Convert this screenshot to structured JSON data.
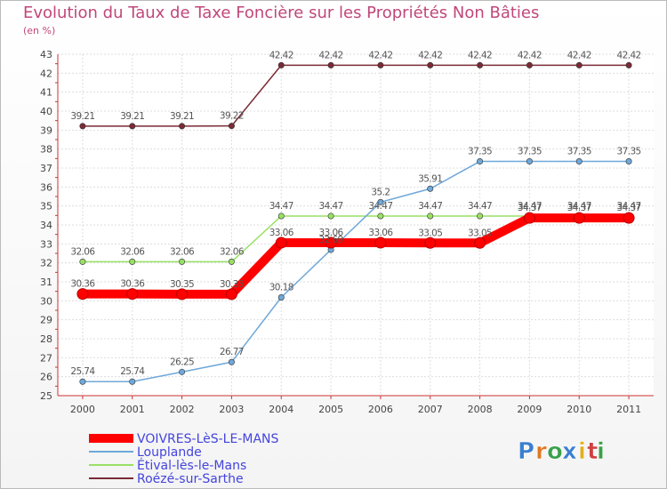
{
  "chart_data": {
    "type": "line",
    "title": "Evolution du Taux de Taxe Foncière sur les Propriétés Non Bâties",
    "subtitle": "(en %)",
    "xlabel": "",
    "ylabel": "",
    "ylim": [
      25,
      43
    ],
    "yticks": [
      "25",
      "26",
      "27",
      "28",
      "29",
      "30",
      "31",
      "32",
      "33",
      "34",
      "35",
      "36",
      "37",
      "38",
      "39",
      "40",
      "41",
      "42",
      "43"
    ],
    "categories": [
      "2000",
      "2001",
      "2002",
      "2003",
      "2004",
      "2005",
      "2006",
      "2007",
      "2008",
      "2009",
      "2010",
      "2011"
    ],
    "grid": true,
    "legend_position": "bottom-left",
    "series": [
      {
        "name": "Roézé-sur-Sarthe",
        "color": "#7a2b35",
        "values": [
          39.21,
          39.21,
          39.21,
          39.22,
          42.42,
          42.42,
          42.42,
          42.42,
          42.42,
          42.42,
          42.42,
          42.42
        ],
        "labels": [
          "39.21",
          "39.21",
          "39.21",
          "39.22",
          "42.42",
          "42.42",
          "42.42",
          "42.42",
          "42.42",
          "42.42",
          "42.42",
          "42.42"
        ]
      },
      {
        "name": "Étival-lès-le-Mans",
        "color": "#99e066",
        "values": [
          32.06,
          32.06,
          32.06,
          32.06,
          34.47,
          34.47,
          34.47,
          34.47,
          34.47,
          34.47,
          34.47,
          34.47
        ],
        "labels": [
          "32.06",
          "32.06",
          "32.06",
          "32.06",
          "34.47",
          "34.47",
          "34.47",
          "34.47",
          "34.47",
          "34.47",
          "34.47",
          "34.47"
        ]
      },
      {
        "name": "Louplande",
        "color": "#6fa8d9",
        "values": [
          25.74,
          25.74,
          26.25,
          26.77,
          30.18,
          32.69,
          35.2,
          35.91,
          37.35,
          37.35,
          37.35,
          37.35
        ],
        "labels": [
          "25.74",
          "25.74",
          "26.25",
          "26.77",
          "30.18",
          "32.69",
          "35.2",
          "35.91",
          "37.35",
          "37.35",
          "37.35",
          "37.35"
        ]
      },
      {
        "name": "VOIVRES-LèS-LE-MANS",
        "color": "#ff0000",
        "values": [
          30.36,
          30.36,
          30.35,
          30.35,
          33.06,
          33.06,
          33.06,
          33.05,
          33.05,
          34.37,
          34.37,
          34.37
        ],
        "labels": [
          "30.36",
          "30.36",
          "30.35",
          "30.35",
          "33.06",
          "33.06",
          "33.06",
          "33.05",
          "33.05",
          "34.37",
          "34.37",
          "34.37"
        ]
      }
    ],
    "legend": [
      {
        "name": "VOIVRES-LèS-LE-MANS",
        "color": "#ff0000",
        "text_color": "#4444dd"
      },
      {
        "name": "Louplande",
        "color": "#6fa8d9",
        "text_color": "#4444dd"
      },
      {
        "name": "Étival-lès-le-Mans",
        "color": "#99e066",
        "text_color": "#4444dd"
      },
      {
        "name": "Roézé-sur-Sarthe",
        "color": "#7a2b35",
        "text_color": "#4444dd"
      }
    ]
  },
  "brand": {
    "letters": [
      "P",
      "r",
      "o",
      "x",
      "i",
      "t",
      "i"
    ],
    "colors": [
      "#3a7fd0",
      "#e07820",
      "#3aa04a",
      "#3a7fd0",
      "#e0b020",
      "#d04040",
      "#3aa04a"
    ]
  }
}
